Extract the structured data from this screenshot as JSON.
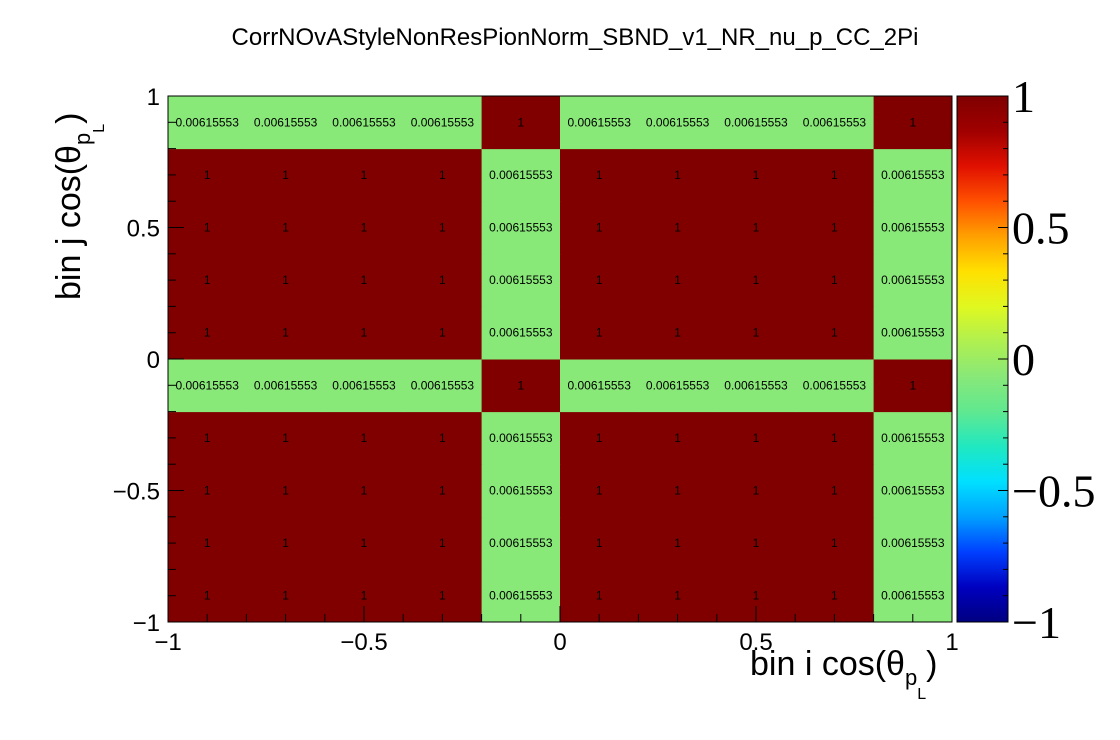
{
  "chart_data": {
    "type": "heatmap",
    "title": "CorrNOvAStyleNonResPionNorm_SBND_v1_NR_nu_p_CC_2Pi",
    "xlabel": "bin i cos(θ",
    "xlabel_sub": "p",
    "xlabel_subsub": "L",
    "xlabel_close": ")",
    "ylabel": "bin j cos(θ",
    "ylabel_sub": "p",
    "ylabel_subsub": "L",
    "ylabel_close": ")",
    "xlim": [
      -1,
      1
    ],
    "ylim": [
      -1,
      1
    ],
    "x_tick_labels": [
      "−1",
      "−0.5",
      "0",
      "0.5",
      "1"
    ],
    "x_tick_values": [
      -1,
      -0.5,
      0,
      0.5,
      1
    ],
    "y_tick_labels": [
      "−1",
      "−0.5",
      "0",
      "0.5",
      "1"
    ],
    "y_tick_values": [
      -1,
      -0.5,
      0,
      0.5,
      1
    ],
    "x_bin_edges": [
      -1,
      -0.8,
      -0.6,
      -0.4,
      -0.2,
      0,
      0.2,
      0.4,
      0.6,
      0.8,
      1
    ],
    "y_bin_edges": [
      -1,
      -0.8,
      -0.6,
      -0.4,
      -0.2,
      0,
      0.2,
      0.4,
      0.6,
      0.8,
      1
    ],
    "values": [
      [
        1,
        1,
        1,
        1,
        0.00615553,
        1,
        1,
        1,
        1,
        0.00615553
      ],
      [
        1,
        1,
        1,
        1,
        0.00615553,
        1,
        1,
        1,
        1,
        0.00615553
      ],
      [
        1,
        1,
        1,
        1,
        0.00615553,
        1,
        1,
        1,
        1,
        0.00615553
      ],
      [
        1,
        1,
        1,
        1,
        0.00615553,
        1,
        1,
        1,
        1,
        0.00615553
      ],
      [
        0.00615553,
        0.00615553,
        0.00615553,
        0.00615553,
        1,
        0.00615553,
        0.00615553,
        0.00615553,
        0.00615553,
        1
      ],
      [
        1,
        1,
        1,
        1,
        0.00615553,
        1,
        1,
        1,
        1,
        0.00615553
      ],
      [
        1,
        1,
        1,
        1,
        0.00615553,
        1,
        1,
        1,
        1,
        0.00615553
      ],
      [
        1,
        1,
        1,
        1,
        0.00615553,
        1,
        1,
        1,
        1,
        0.00615553
      ],
      [
        1,
        1,
        1,
        1,
        0.00615553,
        1,
        1,
        1,
        1,
        0.00615553
      ],
      [
        0.00615553,
        0.00615553,
        0.00615553,
        0.00615553,
        1,
        0.00615553,
        0.00615553,
        0.00615553,
        0.00615553,
        1
      ]
    ],
    "value_labels": [
      [
        "1",
        "1",
        "1",
        "1",
        "0.00615553",
        "1",
        "1",
        "1",
        "1",
        "0.00615553"
      ],
      [
        "1",
        "1",
        "1",
        "1",
        "0.00615553",
        "1",
        "1",
        "1",
        "1",
        "0.00615553"
      ],
      [
        "1",
        "1",
        "1",
        "1",
        "0.00615553",
        "1",
        "1",
        "1",
        "1",
        "0.00615553"
      ],
      [
        "1",
        "1",
        "1",
        "1",
        "0.00615553",
        "1",
        "1",
        "1",
        "1",
        "0.00615553"
      ],
      [
        "0.00615553",
        "0.00615553",
        "0.00615553",
        "0.00615553",
        "1",
        "0.00615553",
        "0.00615553",
        "0.00615553",
        "0.00615553",
        "1"
      ],
      [
        "1",
        "1",
        "1",
        "1",
        "0.00615553",
        "1",
        "1",
        "1",
        "1",
        "0.00615553"
      ],
      [
        "1",
        "1",
        "1",
        "1",
        "0.00615553",
        "1",
        "1",
        "1",
        "1",
        "0.00615553"
      ],
      [
        "1",
        "1",
        "1",
        "1",
        "0.00615553",
        "1",
        "1",
        "1",
        "1",
        "0.00615553"
      ],
      [
        "1",
        "1",
        "1",
        "1",
        "0.00615553",
        "1",
        "1",
        "1",
        "1",
        "0.00615553"
      ],
      [
        "0.00615553",
        "0.00615553",
        "0.00615553",
        "0.00615553",
        "1",
        "0.00615553",
        "0.00615553",
        "0.00615553",
        "0.00615553",
        "1"
      ]
    ],
    "zlim": [
      -1,
      1
    ],
    "palette_tick_labels": [
      "1",
      "0.5",
      "0",
      "−0.5",
      "−1"
    ],
    "palette_tick_values": [
      1,
      0.5,
      0,
      -0.5,
      -1
    ],
    "colors": {
      "high": "#800000",
      "low": "#88e878"
    },
    "colormap": [
      "#000080",
      "#0000c0",
      "#0040ff",
      "#00a0ff",
      "#00e0ff",
      "#20e8c0",
      "#60e890",
      "#88e878",
      "#b0f050",
      "#e0f820",
      "#ffe000",
      "#ffa000",
      "#ff5000",
      "#e01000",
      "#a00000",
      "#800000"
    ],
    "grid": false
  }
}
